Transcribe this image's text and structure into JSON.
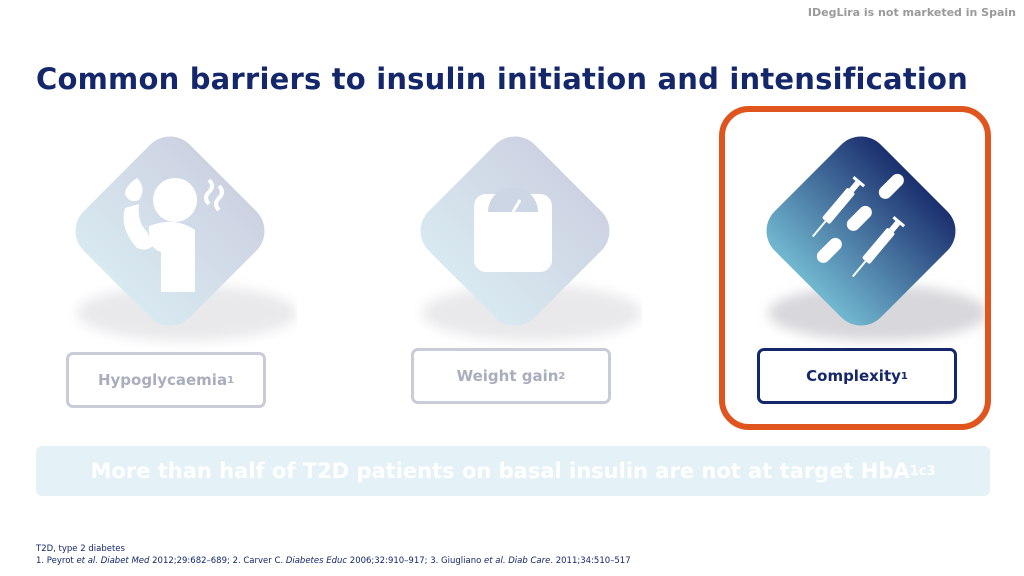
{
  "header": {
    "disclaimer": "IDegLira is not marketed in Spain",
    "title": "Common barriers to insulin initiation and intensification"
  },
  "barriers": [
    {
      "label": "Hypoglycaemia",
      "ref": "1",
      "icon": "hypoglycaemia-person-icon",
      "state": "faded"
    },
    {
      "label": "Weight gain",
      "ref": "2",
      "icon": "weighing-scale-icon",
      "state": "faded"
    },
    {
      "label": "Complexity",
      "ref": "1",
      "icon": "syringes-pills-icon",
      "state": "active"
    }
  ],
  "banner": {
    "text": "More than half of T2D patients on basal insulin are not at target HbA",
    "subscript": "1c",
    "ref": "3"
  },
  "footnotes": {
    "abbrev": "T2D, type 2 diabetes",
    "ref1_num": "1. Peyrot ",
    "ref1_etal": "et al.",
    "ref1_journal": "Diabet Med",
    "ref1_rest": " 2012;29:682–689; ",
    "ref2_num": "2. Carver C. ",
    "ref2_journal": "Diabetes Educ",
    "ref2_rest": " 2006;32:910–917; ",
    "ref3_num": "3. Giugliano ",
    "ref3_etal": "et al.",
    "ref3_journal": "Diab Care",
    "ref3_rest": ". 2011;34:510–517"
  },
  "colors": {
    "title": "#14276b",
    "highlight": "#e0541e",
    "faded_diamond": "#c9d6e4",
    "active_diamond_top": "#1b2f6e",
    "active_diamond_bottom": "#6fb4cc"
  }
}
